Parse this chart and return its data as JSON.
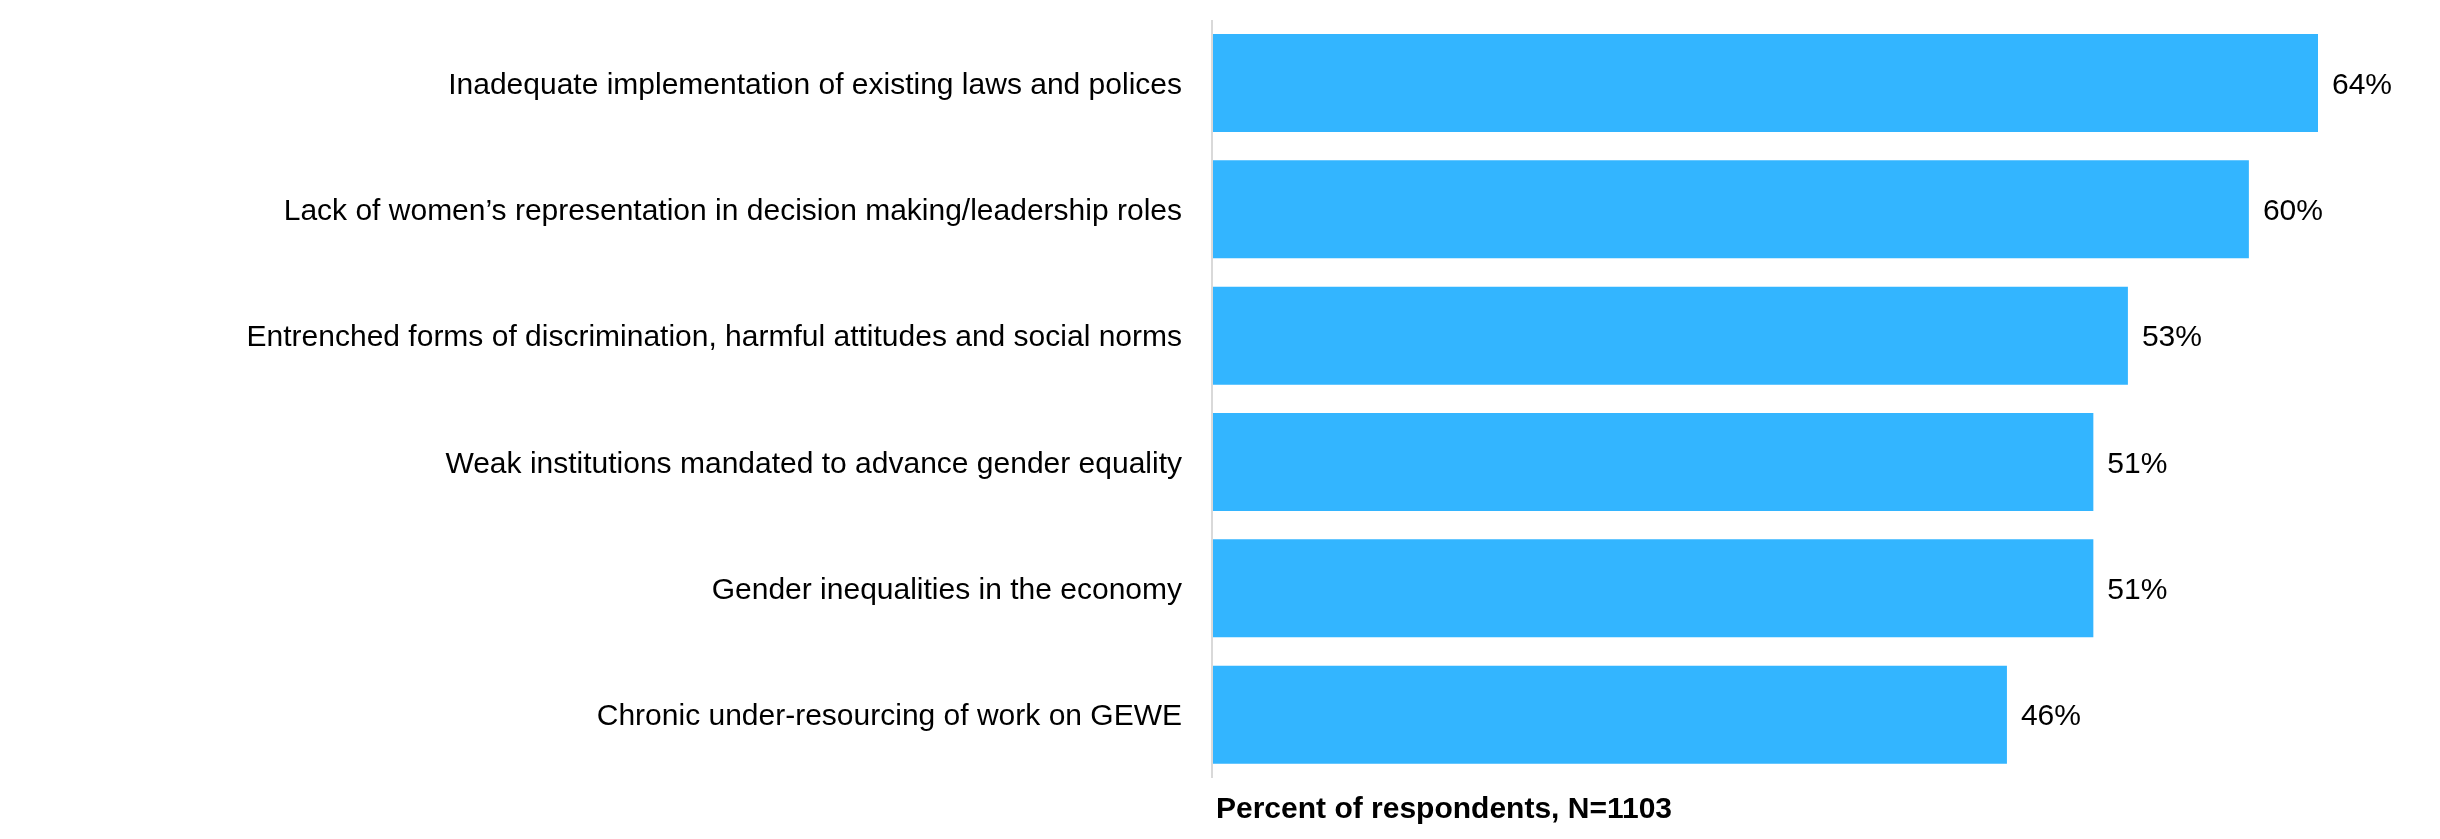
{
  "chart_data": {
    "type": "bar",
    "orientation": "horizontal",
    "categories": [
      "Inadequate implementation of existing laws and polices",
      "Lack of women’s representation in decision making/leadership roles",
      "Entrenched forms of discrimination, harmful attitudes and social norms",
      "Weak institutions mandated to advance gender equality",
      "Gender inequalities in the economy",
      "Chronic under-resourcing of work on GEWE"
    ],
    "values": [
      64,
      60,
      53,
      51,
      51,
      46
    ],
    "value_labels": [
      "64%",
      "60%",
      "53%",
      "51%",
      "51%",
      "46%"
    ],
    "color": "#33b5ff",
    "xlabel": "Percent of respondents, N=1103",
    "tick_labels": "y",
    "grid": false,
    "legend": false
  }
}
